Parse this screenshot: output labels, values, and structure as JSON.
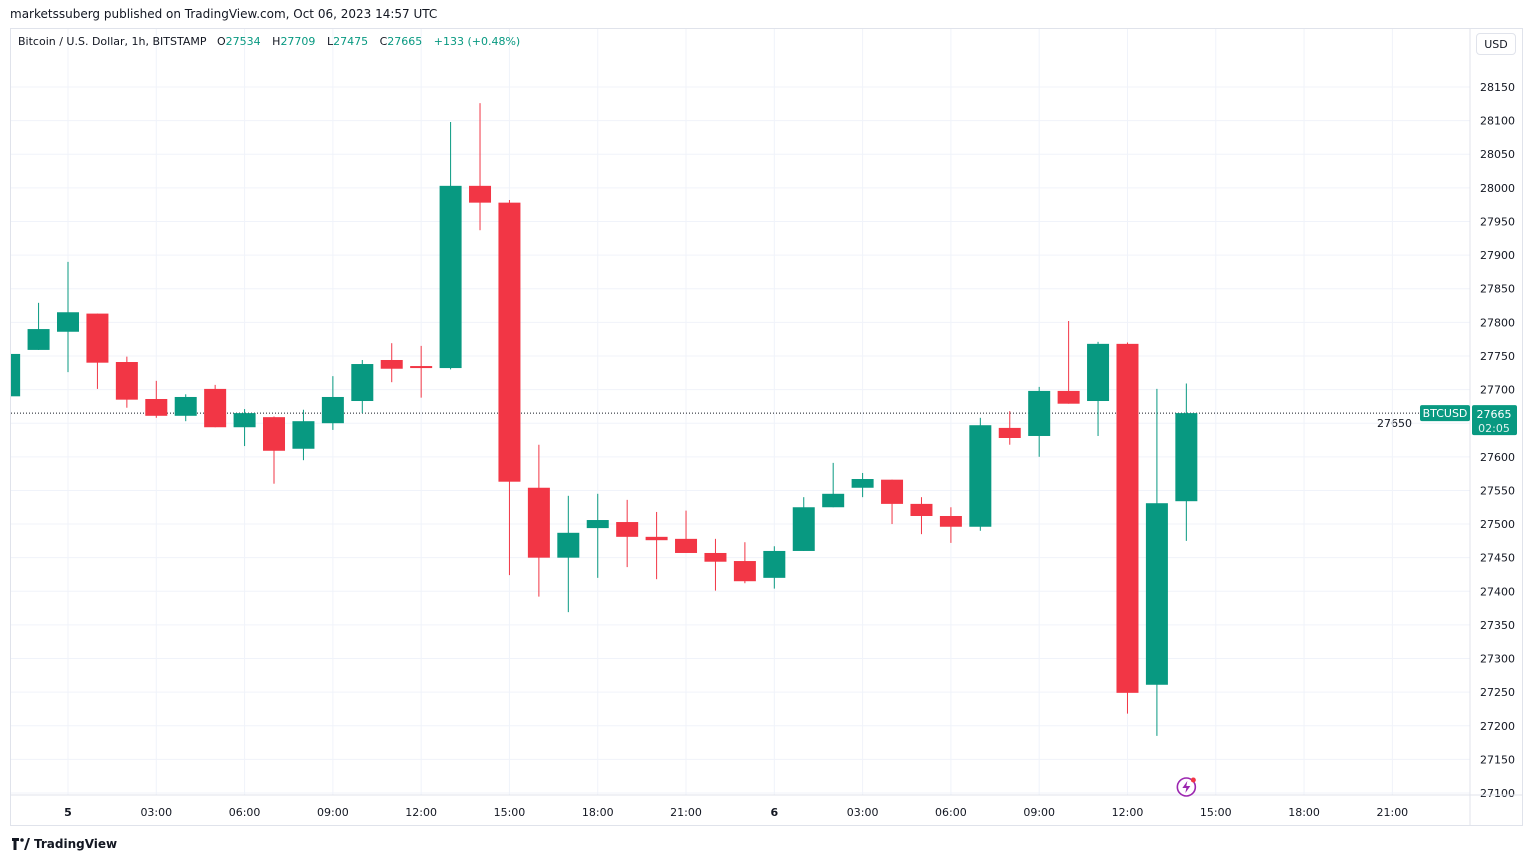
{
  "header": {
    "published": "marketssuberg published on TradingView.com, Oct 06, 2023 14:57 UTC"
  },
  "legend": {
    "symbol": "Bitcoin / U.S. Dollar, 1h, BITSTAMP",
    "o_label": "O",
    "o": "27534",
    "h_label": "H",
    "h": "27709",
    "l_label": "L",
    "l": "27475",
    "c_label": "C",
    "c": "27665",
    "change": "+133 (+0.48%)"
  },
  "currency_button": "USD",
  "price_tag": {
    "symbol": "BTCUSD",
    "price": "27665",
    "countdown": "02:05"
  },
  "footer": {
    "brand": "TradingView"
  },
  "colors": {
    "up": "#089981",
    "down": "#f23645",
    "grid": "#f0f3fa",
    "alert_icon": "#9c27b0"
  },
  "icons": [
    "tradingview-logo-icon",
    "lightning-alert-icon"
  ],
  "chart_data": {
    "type": "candlestick",
    "title": "",
    "ylim": [
      27075,
      28200
    ],
    "grid": true,
    "y_ticks": [
      27100,
      27150,
      27200,
      27250,
      27300,
      27350,
      27400,
      27450,
      27500,
      27550,
      27600,
      27650,
      27700,
      27750,
      27800,
      27850,
      27900,
      27950,
      28000,
      28050,
      28100,
      28150
    ],
    "x_ticks": [
      {
        "label": "5",
        "time": "2023-10-05 00:00",
        "bold": true
      },
      {
        "label": "03:00",
        "time": "2023-10-05 03:00"
      },
      {
        "label": "06:00",
        "time": "2023-10-05 06:00"
      },
      {
        "label": "09:00",
        "time": "2023-10-05 09:00"
      },
      {
        "label": "12:00",
        "time": "2023-10-05 12:00"
      },
      {
        "label": "15:00",
        "time": "2023-10-05 15:00"
      },
      {
        "label": "18:00",
        "time": "2023-10-05 18:00"
      },
      {
        "label": "21:00",
        "time": "2023-10-05 21:00"
      },
      {
        "label": "6",
        "time": "2023-10-06 00:00",
        "bold": true
      },
      {
        "label": "03:00",
        "time": "2023-10-06 03:00"
      },
      {
        "label": "06:00",
        "time": "2023-10-06 06:00"
      },
      {
        "label": "09:00",
        "time": "2023-10-06 09:00"
      },
      {
        "label": "12:00",
        "time": "2023-10-06 12:00"
      },
      {
        "label": "15:00",
        "time": "2023-10-06 15:00"
      },
      {
        "label": "18:00",
        "time": "2023-10-06 18:00"
      },
      {
        "label": "21:00",
        "time": "2023-10-06 21:00"
      }
    ],
    "last_price": 27665,
    "candles_columns": [
      "time",
      "open",
      "high",
      "low",
      "close"
    ],
    "candles": [
      [
        "2023-10-04 22:00",
        27690,
        27755,
        27688,
        27753
      ],
      [
        "2023-10-04 23:00",
        27759,
        27829,
        27759,
        27790
      ],
      [
        "2023-10-05 00:00",
        27786,
        27890,
        27726,
        27815
      ],
      [
        "2023-10-05 01:00",
        27813,
        27813,
        27701,
        27740
      ],
      [
        "2023-10-05 02:00",
        27741,
        27749,
        27673,
        27685
      ],
      [
        "2023-10-05 03:00",
        27686,
        27713,
        27658,
        27661
      ],
      [
        "2023-10-05 04:00",
        27661,
        27693,
        27653,
        27689
      ],
      [
        "2023-10-05 05:00",
        27701,
        27707,
        27644,
        27644
      ],
      [
        "2023-10-05 06:00",
        27644,
        27671,
        27616,
        27665
      ],
      [
        "2023-10-05 07:00",
        27659,
        27660,
        27560,
        27609
      ],
      [
        "2023-10-05 08:00",
        27612,
        27670,
        27595,
        27653
      ],
      [
        "2023-10-05 09:00",
        27650,
        27720,
        27640,
        27689
      ],
      [
        "2023-10-05 10:00",
        27683,
        27744,
        27665,
        27738
      ],
      [
        "2023-10-05 11:00",
        27744,
        27769,
        27711,
        27731
      ],
      [
        "2023-10-05 12:00",
        27735,
        27765,
        27688,
        27732
      ],
      [
        "2023-10-05 13:00",
        27732,
        28098,
        27730,
        28003
      ],
      [
        "2023-10-05 14:00",
        28003,
        28126,
        27937,
        27978
      ],
      [
        "2023-10-05 15:00",
        27978,
        27982,
        27424,
        27563
      ],
      [
        "2023-10-05 16:00",
        27554,
        27618,
        27392,
        27450
      ],
      [
        "2023-10-05 17:00",
        27450,
        27542,
        27369,
        27487
      ],
      [
        "2023-10-05 18:00",
        27494,
        27545,
        27420,
        27506
      ],
      [
        "2023-10-05 19:00",
        27503,
        27536,
        27436,
        27481
      ],
      [
        "2023-10-05 20:00",
        27481,
        27518,
        27418,
        27476
      ],
      [
        "2023-10-05 21:00",
        27478,
        27520,
        27457,
        27457
      ],
      [
        "2023-10-05 22:00",
        27457,
        27478,
        27401,
        27444
      ],
      [
        "2023-10-05 23:00",
        27445,
        27473,
        27412,
        27415
      ],
      [
        "2023-10-06 00:00",
        27420,
        27467,
        27404,
        27460
      ],
      [
        "2023-10-06 01:00",
        27460,
        27540,
        27460,
        27525
      ],
      [
        "2023-10-06 02:00",
        27525,
        27591,
        27525,
        27545
      ],
      [
        "2023-10-06 03:00",
        27554,
        27576,
        27540,
        27567
      ],
      [
        "2023-10-06 04:00",
        27566,
        27566,
        27500,
        27530
      ],
      [
        "2023-10-06 05:00",
        27530,
        27540,
        27485,
        27512
      ],
      [
        "2023-10-06 06:00",
        27512,
        27525,
        27472,
        27496
      ],
      [
        "2023-10-06 07:00",
        27496,
        27658,
        27490,
        27647
      ],
      [
        "2023-10-06 08:00",
        27643,
        27668,
        27618,
        27628
      ],
      [
        "2023-10-06 09:00",
        27631,
        27704,
        27600,
        27698
      ],
      [
        "2023-10-06 10:00",
        27698,
        27802,
        27679,
        27679
      ],
      [
        "2023-10-06 11:00",
        27683,
        27771,
        27631,
        27768
      ],
      [
        "2023-10-06 12:00",
        27768,
        27770,
        27218,
        27249
      ],
      [
        "2023-10-06 13:00",
        27261,
        27701,
        27185,
        27531
      ],
      [
        "2023-10-06 14:00",
        27534,
        27709,
        27475,
        27665
      ]
    ]
  }
}
